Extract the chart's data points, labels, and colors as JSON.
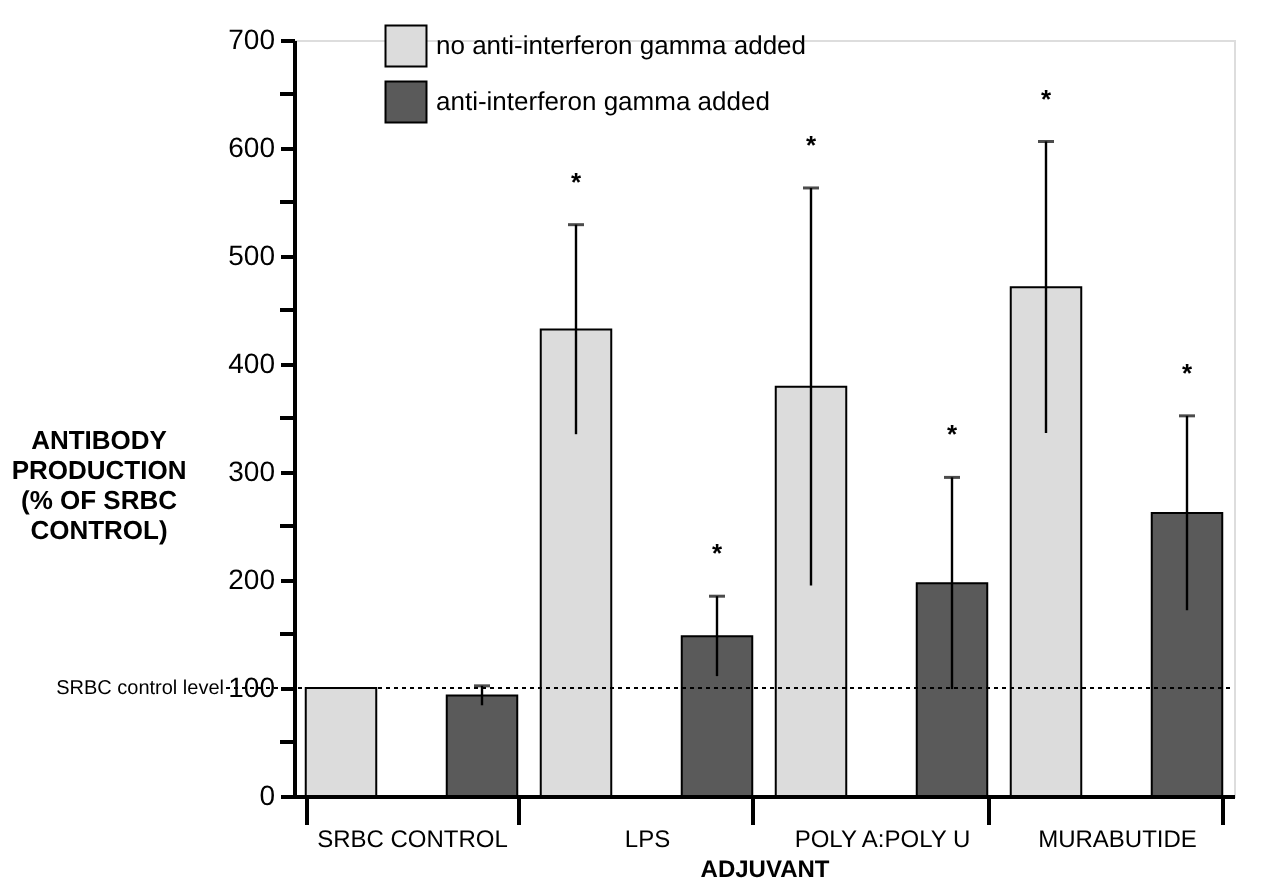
{
  "chart_data": {
    "type": "bar",
    "xlabel": "ADJUVANT",
    "ylabel": "ANTIBODY\nPRODUCTION\n(% OF SRBC\nCONTROL)",
    "categories": [
      "SRBC CONTROL",
      "LPS",
      "POLY A:POLY U",
      "MURABUTIDE"
    ],
    "series": [
      {
        "name": "no  anti-interferon  gamma  added",
        "color": "#dcdcdc",
        "values": [
          100,
          432,
          379,
          471
        ],
        "errors": [
          null,
          97,
          184,
          135
        ]
      },
      {
        "name": "anti-interferon  gamma  added",
        "color": "#5a5a5a",
        "values": [
          93,
          148,
          197,
          262
        ],
        "errors": [
          9,
          37,
          98,
          90
        ]
      }
    ],
    "ylim": [
      0,
      700
    ],
    "yticks": [
      0,
      {
        "value": 50,
        "label": null
      },
      100,
      {
        "value": 150,
        "label": null
      },
      200,
      {
        "value": 250,
        "label": null
      },
      300,
      {
        "value": 350,
        "label": null
      },
      400,
      {
        "value": 450,
        "label": null
      },
      500,
      {
        "value": 550,
        "label": null
      },
      600,
      {
        "value": 650,
        "label": null
      },
      700
    ],
    "ref_lines": [
      {
        "axis": "y",
        "value": 100,
        "label": "SRBC control level",
        "line_style": "dotted",
        "color": "#000000"
      }
    ],
    "annotations": [
      "*",
      "*",
      "*",
      "*",
      "*",
      "*"
    ],
    "legend": "top left",
    "grid": false
  }
}
